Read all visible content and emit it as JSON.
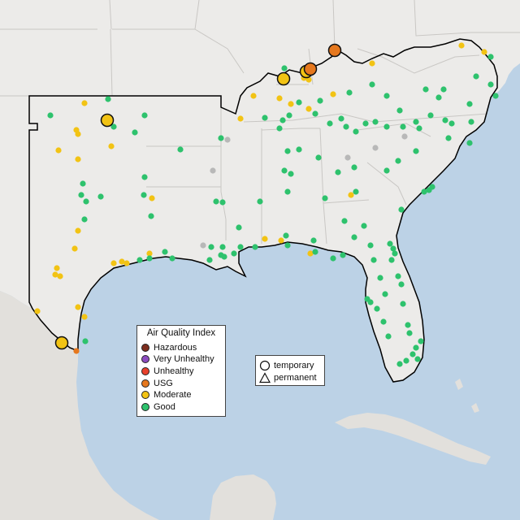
{
  "legend": {
    "title": "Air Quality Index",
    "categories": [
      {
        "label": "Hazardous",
        "color": "#7e2e1f"
      },
      {
        "label": "Very Unhealthy",
        "color": "#8b4cbf"
      },
      {
        "label": "Unhealthy",
        "color": "#e8412c"
      },
      {
        "label": "USG",
        "color": "#e6781e"
      },
      {
        "label": "Moderate",
        "color": "#f2c314"
      },
      {
        "label": "Good",
        "color": "#2ec26d"
      }
    ]
  },
  "monitor_types": {
    "temporary": "temporary",
    "permanent": "permanent",
    "temporary_shape": "circle",
    "permanent_shape": "triangle"
  },
  "colors": {
    "ocean": "#bcd2e6",
    "land": "#ecebe9",
    "foreign_land": "#e2e0dc",
    "state_border": "#c9c7c4",
    "region_outline": "#000000",
    "no_data": "#b8b8b8"
  }
}
